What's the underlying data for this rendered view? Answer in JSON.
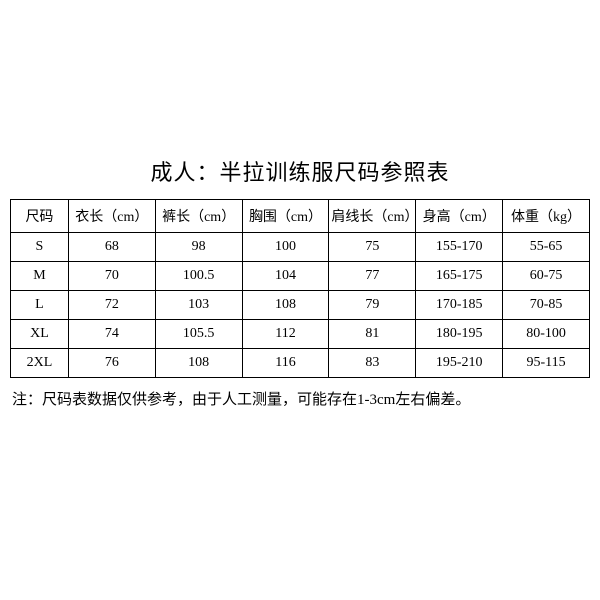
{
  "title": "成人：半拉训练服尺码参照表",
  "table": {
    "type": "table",
    "background_color": "#ffffff",
    "border_color": "#000000",
    "text_color": "#000000",
    "header_fontsize": 14,
    "cell_fontsize": 14,
    "columns": [
      {
        "label": "尺码",
        "width": "10%"
      },
      {
        "label": "衣长（cm）",
        "width": "15%"
      },
      {
        "label": "裤长（cm）",
        "width": "15%"
      },
      {
        "label": "胸围（cm）",
        "width": "15%"
      },
      {
        "label": "肩线长（cm）",
        "width": "15%"
      },
      {
        "label": "身高（cm）",
        "width": "15%"
      },
      {
        "label": "体重（kg）",
        "width": "15%"
      }
    ],
    "rows": [
      [
        "S",
        "68",
        "98",
        "100",
        "75",
        "155-170",
        "55-65"
      ],
      [
        "M",
        "70",
        "100.5",
        "104",
        "77",
        "165-175",
        "60-75"
      ],
      [
        "L",
        "72",
        "103",
        "108",
        "79",
        "170-185",
        "70-85"
      ],
      [
        "XL",
        "74",
        "105.5",
        "112",
        "81",
        "180-195",
        "80-100"
      ],
      [
        "2XL",
        "76",
        "108",
        "116",
        "83",
        "195-210",
        "95-115"
      ]
    ]
  },
  "footnote": "注：尺码表数据仅供参考，由于人工测量，可能存在1-3cm左右偏差。"
}
